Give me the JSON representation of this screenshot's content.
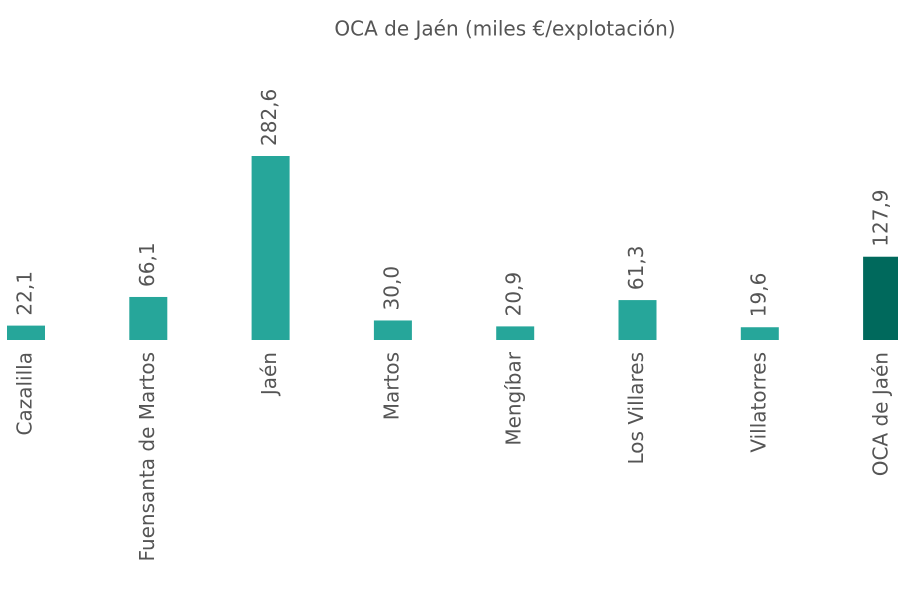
{
  "chart_data": {
    "type": "bar",
    "title": "OCA de Jaén (miles €/explotación)",
    "categories": [
      "Cazalilla",
      "Fuensanta de Martos",
      "Jaén",
      "Martos",
      "Mengíbar",
      "Los Villares",
      "Villatorres",
      "OCA de Jaén"
    ],
    "values": [
      22.1,
      66.1,
      282.6,
      30.0,
      20.9,
      61.3,
      19.6,
      127.9
    ],
    "value_labels": [
      "22,1",
      "66,1",
      "282,6",
      "30,0",
      "20,9",
      "61,3",
      "19,6",
      "127,9"
    ],
    "colors": [
      "#26a69a",
      "#26a69a",
      "#26a69a",
      "#26a69a",
      "#26a69a",
      "#26a69a",
      "#26a69a",
      "#00695c"
    ]
  }
}
